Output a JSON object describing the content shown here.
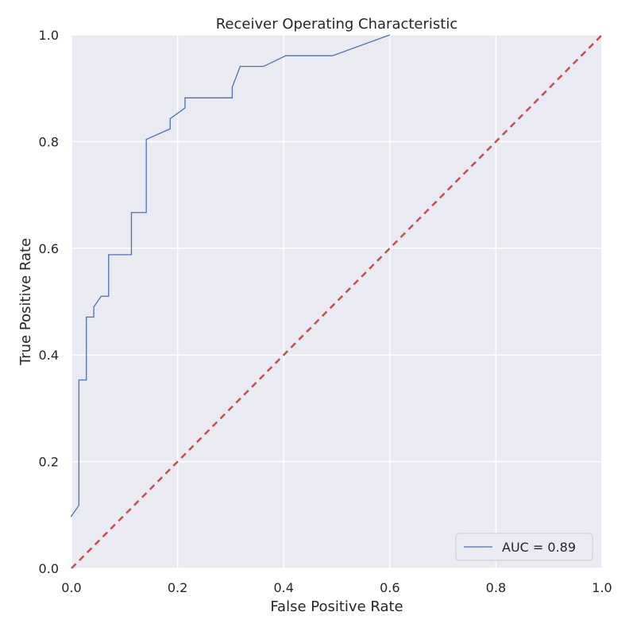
{
  "chart_data": {
    "type": "line",
    "title": "Receiver Operating Characteristic",
    "xlabel": "False Positive Rate",
    "ylabel": "True Positive Rate",
    "xlim": [
      0.0,
      1.0
    ],
    "ylim": [
      0.0,
      1.0
    ],
    "xticks": [
      "0.0",
      "0.2",
      "0.4",
      "0.6",
      "0.8",
      "1.0"
    ],
    "yticks": [
      "0.0",
      "0.2",
      "0.4",
      "0.6",
      "0.8",
      "1.0"
    ],
    "grid": true,
    "legend_position": "lower-right",
    "series": [
      {
        "name": "AUC = 0.89",
        "color": "#4c72b0",
        "style": "solid",
        "x": [
          0.0,
          0.0,
          0.014,
          0.014,
          0.028,
          0.028,
          0.042,
          0.042,
          0.056,
          0.07,
          0.07,
          0.113,
          0.113,
          0.141,
          0.141,
          0.186,
          0.186,
          0.214,
          0.214,
          0.303,
          0.303,
          0.318,
          0.362,
          0.404,
          0.492,
          0.6
        ],
        "y": [
          0.1,
          0.098,
          0.118,
          0.353,
          0.353,
          0.471,
          0.471,
          0.49,
          0.51,
          0.51,
          0.588,
          0.588,
          0.667,
          0.667,
          0.804,
          0.824,
          0.843,
          0.863,
          0.882,
          0.882,
          0.902,
          0.941,
          0.941,
          0.961,
          0.961,
          1.0
        ]
      },
      {
        "color": "#c44e52",
        "style": "dashed",
        "x": [
          0.0,
          1.0
        ],
        "y": [
          0.0,
          1.0
        ]
      }
    ],
    "colors": {
      "plot_background": "#eaeaf2",
      "grid": "#ffffff",
      "text": "#262626"
    }
  }
}
